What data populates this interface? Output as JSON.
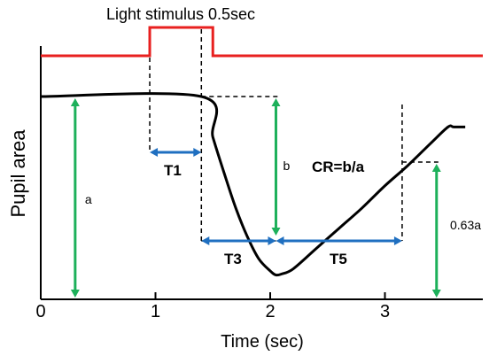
{
  "chart_data": {
    "type": "line",
    "title": "",
    "xlabel": "Time (sec)",
    "ylabel": "Pupil area",
    "xlim": [
      0,
      3.7
    ],
    "x_ticks": [
      {
        "value": 0,
        "label": "0"
      },
      {
        "value": 1,
        "label": "1"
      },
      {
        "value": 2,
        "label": "2"
      },
      {
        "value": 3,
        "label": "3"
      }
    ],
    "grid": false,
    "legend": "none",
    "colors": {
      "stimulus": "#e8201f",
      "response": "#000000",
      "amplitude_arrow": "#1db05a",
      "interval_arrow": "#1f6fc0",
      "guide": "#000000"
    },
    "stimulus": {
      "label": "Light stimulus 0.5sec",
      "onset": 0.95,
      "offset": 1.5
    },
    "baseline_relative": 1.0,
    "series": [
      {
        "x": [
          0,
          1.4,
          1.5,
          1.6,
          1.7,
          1.8,
          1.9,
          2.0,
          2.05,
          2.1,
          2.2,
          2.4,
          2.6,
          2.8,
          3.0,
          3.2,
          3.4,
          3.55,
          3.6,
          3.7
        ],
        "y": [
          1.0,
          1.0,
          0.8,
          0.62,
          0.45,
          0.31,
          0.2,
          0.14,
          0.12,
          0.125,
          0.15,
          0.25,
          0.35,
          0.45,
          0.56,
          0.66,
          0.77,
          0.85,
          0.85,
          0.85
        ]
      }
    ],
    "annotations": {
      "a_label": "a",
      "b_label": "b",
      "t1_label": "T1",
      "t3_label": "T3",
      "t5_label": "T5",
      "cr_label": "CR=b/a",
      "a063_label": "0.63a"
    },
    "markers": {
      "t1_start": 0.95,
      "t1_end": 1.4,
      "min_time": 2.05,
      "recovery_time": 3.15,
      "a_arrow_x": 0.3,
      "b_arrow_x": 2.05,
      "a063_arrow_x": 3.45
    }
  }
}
